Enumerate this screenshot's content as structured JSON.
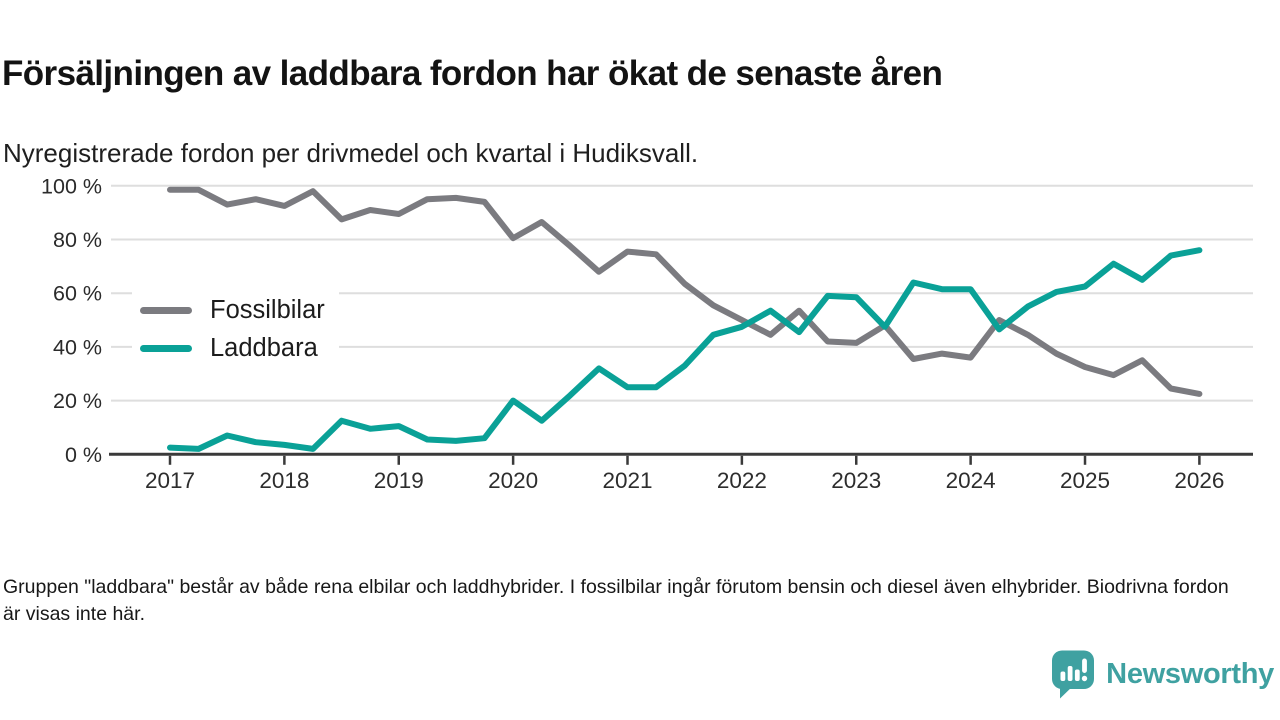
{
  "header": {
    "title": "Försäljningen av laddbara fordon har ökat de senaste åren",
    "subtitle": "Nyregistrerade fordon per drivmedel och kvartal i Hudiksvall."
  },
  "chart_data": {
    "type": "line",
    "x": [
      "2017 Q1",
      "2017 Q2",
      "2017 Q3",
      "2017 Q4",
      "2018 Q1",
      "2018 Q2",
      "2018 Q3",
      "2018 Q4",
      "2019 Q1",
      "2019 Q2",
      "2019 Q3",
      "2019 Q4",
      "2020 Q1",
      "2020 Q2",
      "2020 Q3",
      "2020 Q4",
      "2021 Q1",
      "2021 Q2",
      "2021 Q3",
      "2021 Q4",
      "2022 Q1",
      "2022 Q2",
      "2022 Q3",
      "2022 Q4",
      "2023 Q1",
      "2023 Q2",
      "2023 Q3",
      "2023 Q4",
      "2024 Q1",
      "2024 Q2",
      "2024 Q3",
      "2024 Q4",
      "2025 Q1",
      "2025 Q2",
      "2025 Q3",
      "2025 Q4",
      "2026 Q1"
    ],
    "year_labels": [
      "2017",
      "2018",
      "2019",
      "2020",
      "2021",
      "2022",
      "2023",
      "2024",
      "2025",
      "2026"
    ],
    "series": [
      {
        "name": "Fossilbilar",
        "color": "#7b7b80",
        "values": [
          98.5,
          98.5,
          93,
          95,
          92.5,
          98,
          87.5,
          91,
          89.5,
          95,
          95.5,
          94,
          80.5,
          86.5,
          77.5,
          68,
          75.5,
          74.5,
          63.5,
          55.5,
          50,
          44.5,
          53.5,
          42,
          41.5,
          48,
          35.5,
          37.5,
          36,
          50,
          44.5,
          37.5,
          32.5,
          29.5,
          35,
          24.5,
          22.5
        ]
      },
      {
        "name": "Laddbara",
        "color": "#0aa197",
        "values": [
          2.5,
          2,
          7,
          4.5,
          3.5,
          2,
          12.5,
          9.5,
          10.5,
          5.5,
          5,
          6,
          20,
          12.5,
          22,
          32,
          25,
          25,
          33,
          44.5,
          47.5,
          53.5,
          45.5,
          59,
          58.5,
          47.5,
          64,
          61.5,
          61.5,
          46.5,
          55,
          60.5,
          62.5,
          71,
          65,
          74,
          76
        ]
      }
    ],
    "ylim": [
      0,
      100
    ],
    "yticks": [
      0,
      20,
      40,
      60,
      80,
      100
    ],
    "ytick_labels": [
      "0 %",
      "20 %",
      "40 %",
      "60 %",
      "80 %",
      "100 %"
    ],
    "grid": "horizontal",
    "legend_position": "inside-left",
    "colors": {
      "grid": "#dedede",
      "axis": "#3a3a3a",
      "tick_label": "#2b2b2b"
    }
  },
  "footer": {
    "note": "Gruppen \"laddbara\" består av både rena elbilar och laddhybrider. I fossilbilar ingår förutom bensin och diesel även elhybrider. Biodrivna fordon är visas inte här."
  },
  "branding": {
    "logo_text": "Newsworthy",
    "logo_color": "#3fa1a1",
    "logo_icon": "bar-chart-speech-bubble-icon"
  }
}
